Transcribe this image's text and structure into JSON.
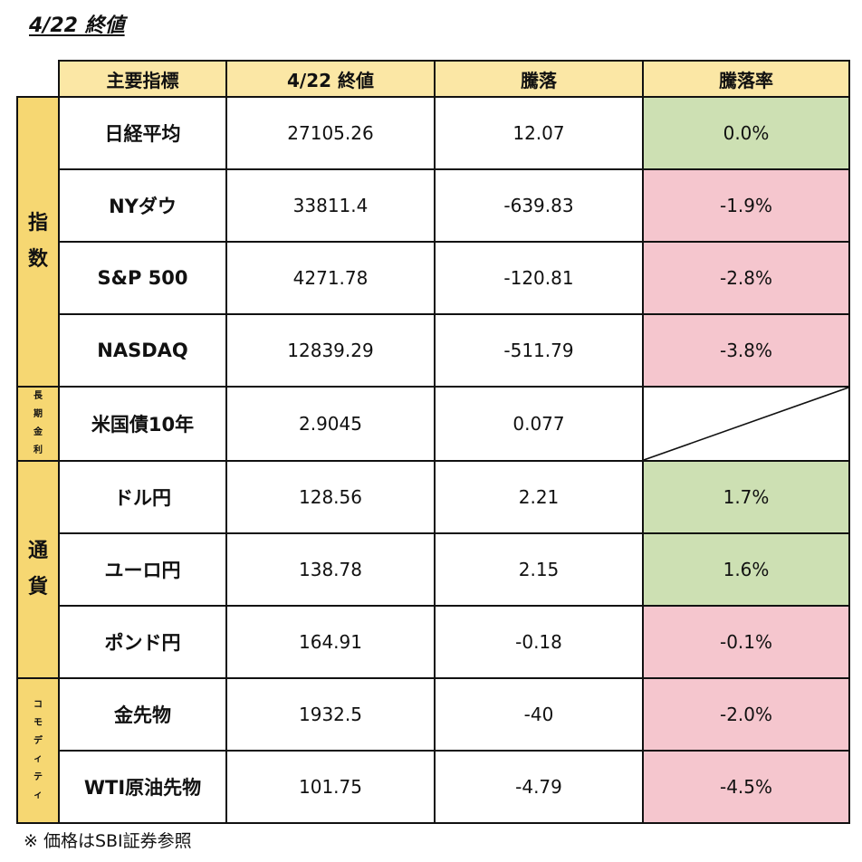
{
  "title": "4/22 終値",
  "header": {
    "name": "主要指標",
    "close": "4/22 終値",
    "change": "騰落",
    "rate": "騰落率"
  },
  "categories": {
    "index": "指\n数",
    "rate": "長\n期\n金\n利",
    "currency": "通\n貨",
    "commodity": "コ\nモ\nデ\nィ\nテ\nィ"
  },
  "rows": [
    {
      "name": "日経平均",
      "close": "27105.26",
      "change": "12.07",
      "rate": "0.0%",
      "sign": "pos"
    },
    {
      "name": "NYダウ",
      "close": "33811.4",
      "change": "-639.83",
      "rate": "-1.9%",
      "sign": "neg"
    },
    {
      "name": "S&P 500",
      "close": "4271.78",
      "change": "-120.81",
      "rate": "-2.8%",
      "sign": "neg"
    },
    {
      "name": "NASDAQ",
      "close": "12839.29",
      "change": "-511.79",
      "rate": "-3.8%",
      "sign": "neg"
    },
    {
      "name": "米国債10年",
      "close": "2.9045",
      "change": "0.077",
      "rate": "",
      "sign": "none"
    },
    {
      "name": "ドル円",
      "close": "128.56",
      "change": "2.21",
      "rate": "1.7%",
      "sign": "pos"
    },
    {
      "name": "ユーロ円",
      "close": "138.78",
      "change": "2.15",
      "rate": "1.6%",
      "sign": "pos"
    },
    {
      "name": "ポンド円",
      "close": "164.91",
      "change": "-0.18",
      "rate": "-0.1%",
      "sign": "neg"
    },
    {
      "name": "金先物",
      "close": "1932.5",
      "change": "-40",
      "rate": "-2.0%",
      "sign": "neg"
    },
    {
      "name": "WTI原油先物",
      "close": "101.75",
      "change": "-4.79",
      "rate": "-4.5%",
      "sign": "neg"
    }
  ],
  "note": "※ 価格はSBI証券参照",
  "colors": {
    "header": "#fbe7a5",
    "category": "#f6d772",
    "positive": "#cde0b3",
    "negative": "#f5c6ce"
  }
}
